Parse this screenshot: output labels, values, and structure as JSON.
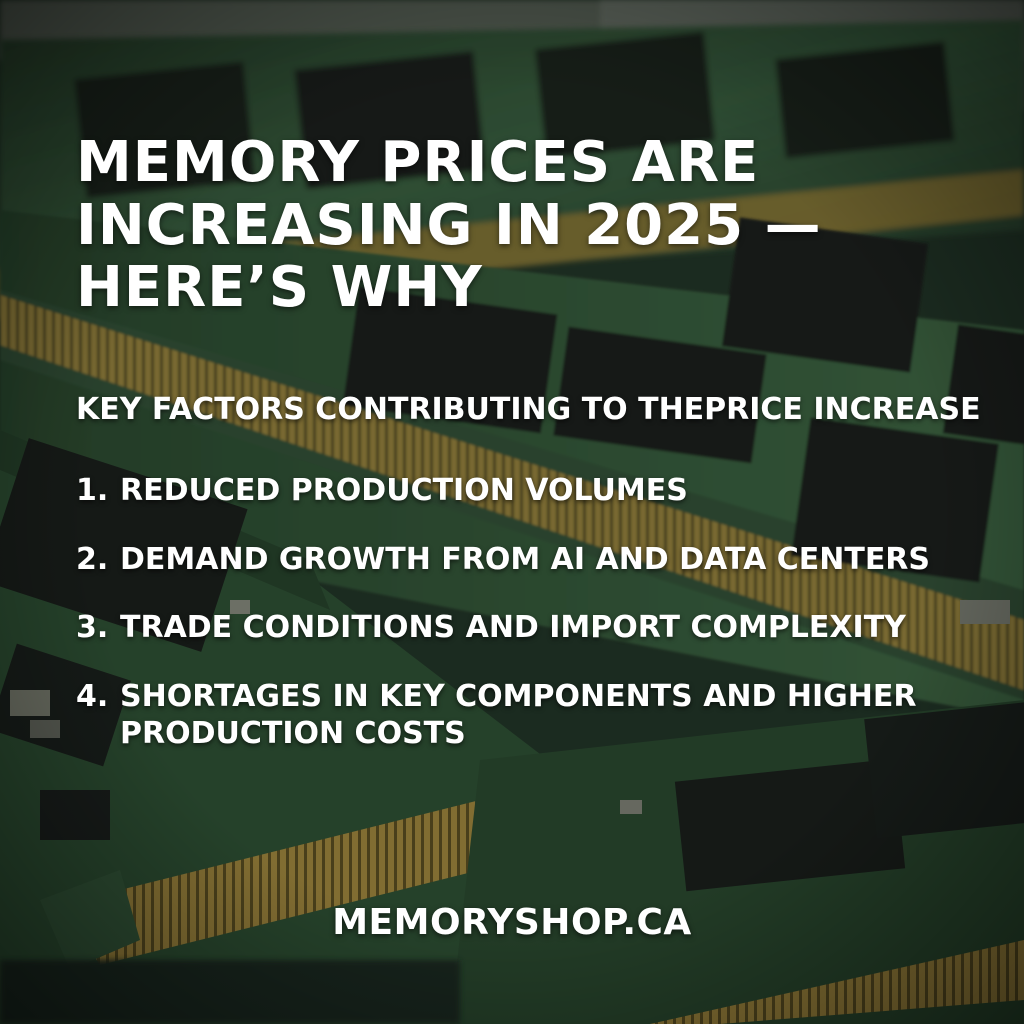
{
  "headline": {
    "lines": [
      "MEMORY PRICES ARE",
      "INCREASING IN 2025 —",
      "HERE’S WHY"
    ]
  },
  "subheading": "KEY FACTORS CONTRIBUTING TO THEPRICE INCREASE",
  "factors": [
    {
      "number": "1.",
      "text": "REDUCED PRODUCTION VOLUMES"
    },
    {
      "number": "2.",
      "text": "DEMAND GROWTH FROM AI AND DATA CENTERS"
    },
    {
      "number": "3.",
      "text": "TRADE CONDITIONS AND IMPORT COMPLEXITY"
    },
    {
      "number": "4.",
      "text": "SHORTAGES IN KEY COMPONENTS AND HIGHER PRODUCTION COSTS"
    }
  ],
  "website": "MEMORYSHOP.CA",
  "colors": {
    "text": "#ffffff",
    "pcb_green": "#3f6b45",
    "chip_black": "#1b1d1c",
    "gold_contacts": "#b8963c"
  },
  "background_image": "ram-modules-photo"
}
